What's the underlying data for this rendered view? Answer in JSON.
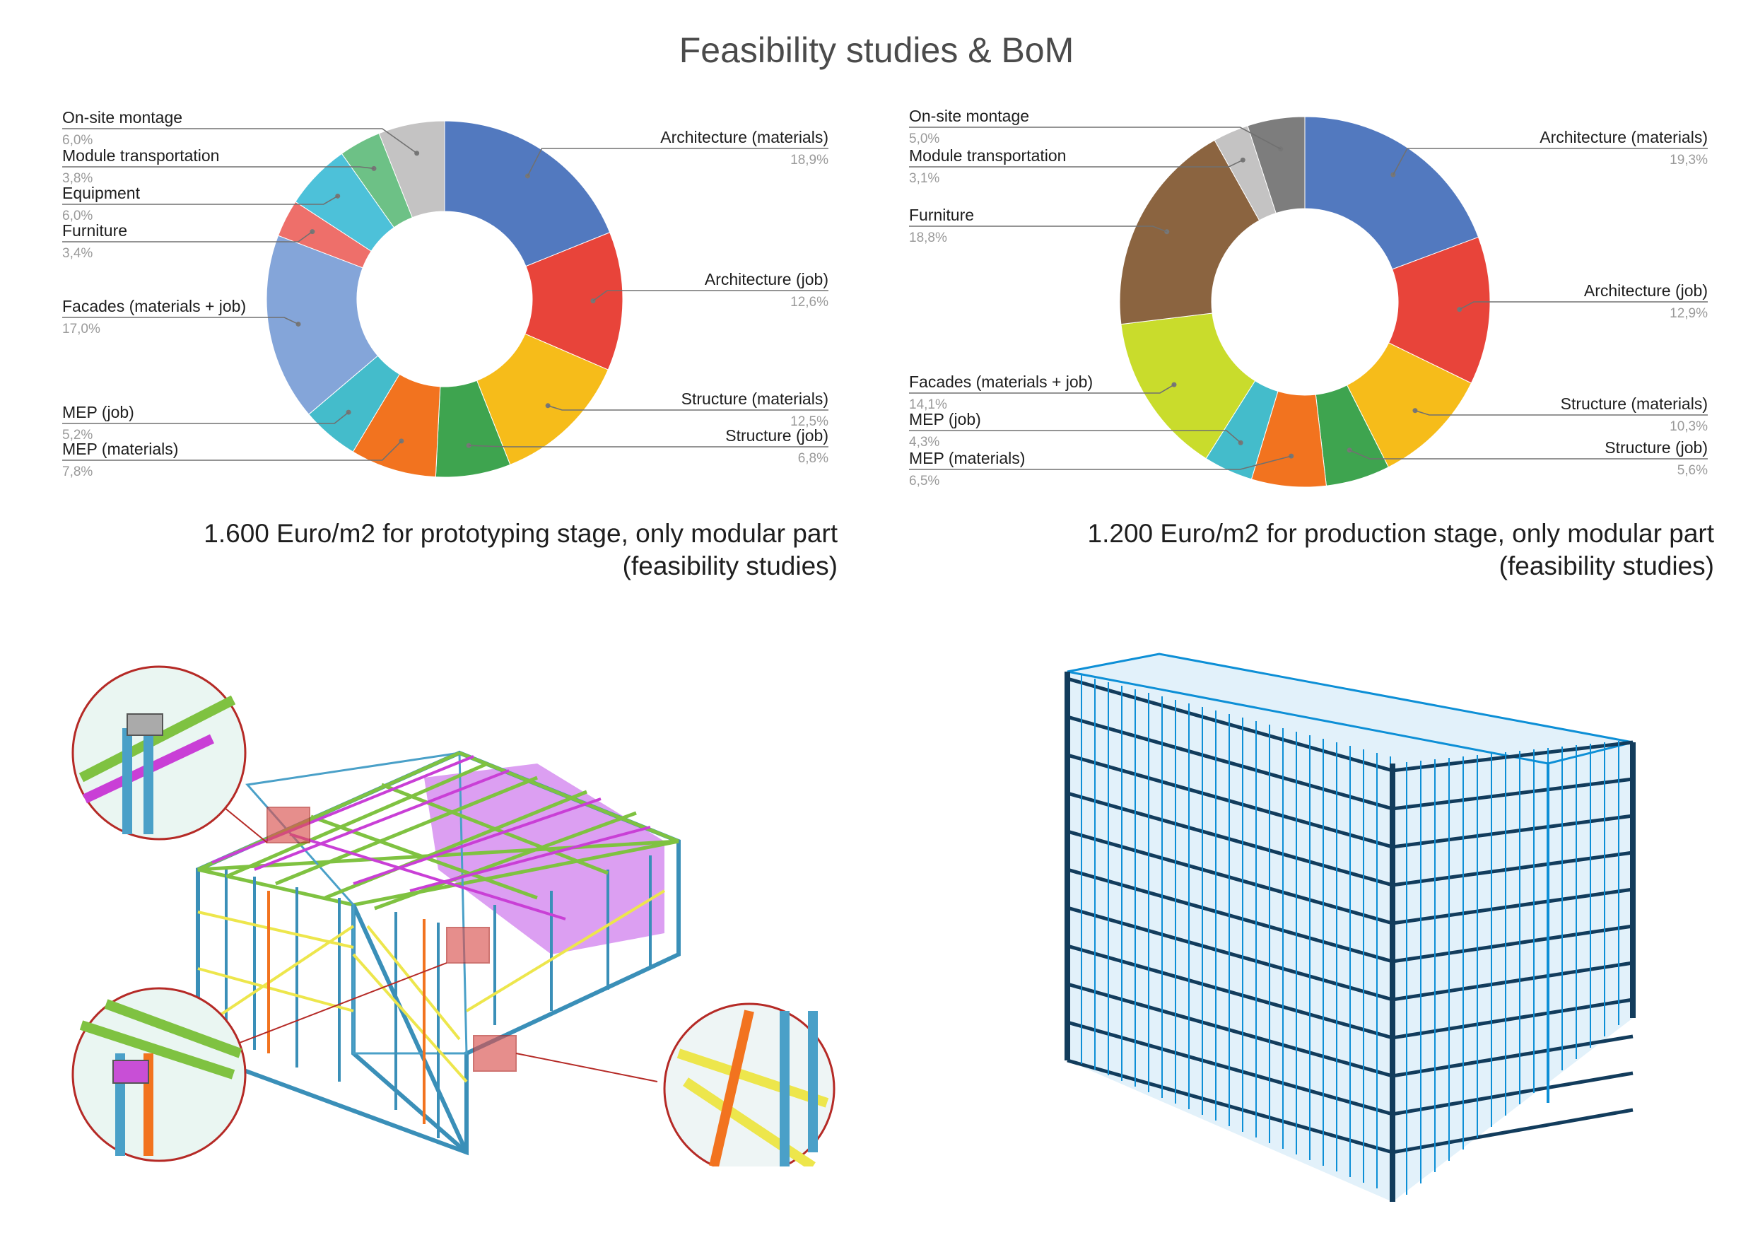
{
  "page": {
    "title": "Feasibility studies & BoM"
  },
  "captions": {
    "left": {
      "line1": "1.600 Euro/m2 for prototyping stage, only modular part",
      "line2": "(feasibility studies)"
    },
    "right": {
      "line1": "1.200 Euro/m2 for production stage, only modular part",
      "line2": "(feasibility studies)"
    }
  },
  "chart_data": [
    {
      "type": "pie",
      "variant": "donut",
      "title": "1.600 Euro/m2 for prototyping stage, only modular part (feasibility studies)",
      "legend": "callout labels",
      "slices": [
        {
          "label": "Architecture (materials)",
          "value": 18.9,
          "display": "18,9%",
          "color": "#5279bf"
        },
        {
          "label": "Architecture (job)",
          "value": 12.6,
          "display": "12,6%",
          "color": "#e8443a"
        },
        {
          "label": "Structure (materials)",
          "value": 12.5,
          "display": "12,5%",
          "color": "#f6bc1a"
        },
        {
          "label": "Structure (job)",
          "value": 6.8,
          "display": "6,8%",
          "color": "#3ea44f"
        },
        {
          "label": "MEP (materials)",
          "value": 7.8,
          "display": "7,8%",
          "color": "#f2731f"
        },
        {
          "label": "MEP (job)",
          "value": 5.2,
          "display": "5,2%",
          "color": "#44bccb"
        },
        {
          "label": "Facades (materials + job)",
          "value": 17.0,
          "display": "17,0%",
          "color": "#84a5d9"
        },
        {
          "label": "Furniture",
          "value": 3.4,
          "display": "3,4%",
          "color": "#ee6f6a"
        },
        {
          "label": "Equipment",
          "value": 6.0,
          "display": "6,0%",
          "color": "#4dc1d9"
        },
        {
          "label": "Module transportation",
          "value": 3.8,
          "display": "3,8%",
          "color": "#6dc186"
        },
        {
          "label": "On-site montage",
          "value": 6.0,
          "display": "6,0%",
          "color": "#c4c3c3"
        }
      ]
    },
    {
      "type": "pie",
      "variant": "donut",
      "title": "1.200 Euro/m2 for production stage, only modular part (feasibility studies)",
      "legend": "callout labels",
      "slices": [
        {
          "label": "Architecture (materials)",
          "value": 19.3,
          "display": "19,3%",
          "color": "#5279bf"
        },
        {
          "label": "Architecture (job)",
          "value": 12.9,
          "display": "12,9%",
          "color": "#e8443a"
        },
        {
          "label": "Structure (materials)",
          "value": 10.3,
          "display": "10,3%",
          "color": "#f6bc1a"
        },
        {
          "label": "Structure (job)",
          "value": 5.6,
          "display": "5,6%",
          "color": "#3ea44f"
        },
        {
          "label": "MEP (materials)",
          "value": 6.5,
          "display": "6,5%",
          "color": "#f2731f"
        },
        {
          "label": "MEP (job)",
          "value": 4.3,
          "display": "4,3%",
          "color": "#44bccb"
        },
        {
          "label": "Facades (materials + job)",
          "value": 14.1,
          "display": "14,1%",
          "color": "#c9dc2c"
        },
        {
          "label": "Furniture",
          "value": 18.8,
          "display": "18,8%",
          "color": "#8b6440"
        },
        {
          "label": "Module transportation",
          "value": 3.1,
          "display": "3,1%",
          "color": "#c4c3c3"
        },
        {
          "label": "On-site montage",
          "value": 5.0,
          "display": "5,0%",
          "color": "#7d7d7d"
        }
      ]
    }
  ],
  "illustrations": {
    "left": {
      "kind": "structural-frame-model",
      "palette": [
        "#4aa0c8",
        "#7fc241",
        "#c93fd6",
        "#ede64c",
        "#f2731f"
      ]
    },
    "right": {
      "kind": "multi-storey-modular-building-wireframe",
      "palette": [
        "#0d8fd6",
        "#123c5c"
      ]
    }
  }
}
